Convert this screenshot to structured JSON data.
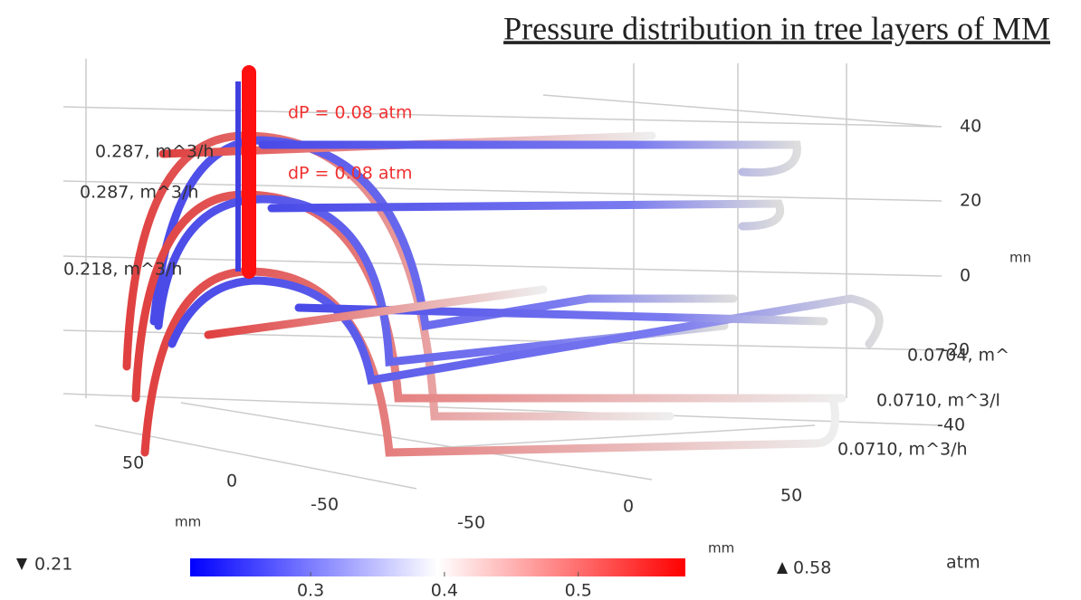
{
  "title": "Pressure distribution in tree layers of MM",
  "annotations": [
    "dP = 0.08 atm",
    "dP = 0.08 atm"
  ],
  "inlet_flows": [
    "0.287, m^3/h",
    "0.287, m^3/h",
    "0.218, m^3/h"
  ],
  "outlet_flows": [
    "0.0704, m^",
    "0.0710, m^3/l",
    "0.0710, m^3/h"
  ],
  "z_axis": {
    "ticks": [
      "40",
      "20",
      "0",
      "-20",
      "-40"
    ],
    "unit": "mn"
  },
  "y_axis": {
    "ticks": [
      "50",
      "0",
      "-50"
    ],
    "unit": "mm"
  },
  "x_axis": {
    "ticks": [
      "-50",
      "0",
      "50"
    ],
    "unit": "mm"
  },
  "colorbar": {
    "min": 0.21,
    "max": 0.58,
    "ticks": [
      0.3,
      0.4,
      0.5
    ],
    "unit": "atm"
  }
}
